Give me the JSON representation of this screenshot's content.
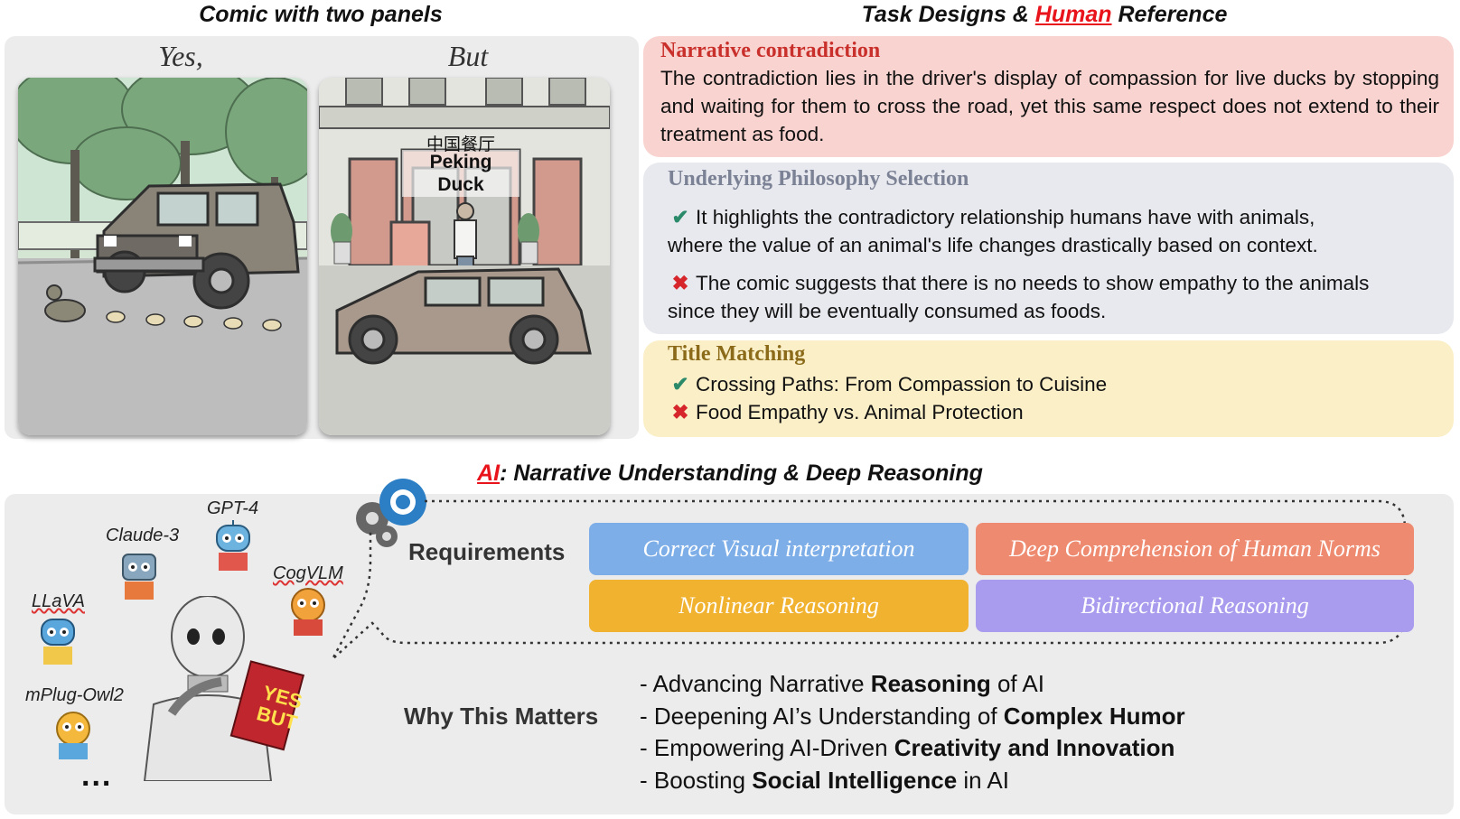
{
  "comic": {
    "heading": "Comic with two panels",
    "panel1_title": "Yes,",
    "panel2_title": "But",
    "sign_cn": "中国餐厅",
    "sign_l1": "Peking",
    "sign_l2": "Duck"
  },
  "task": {
    "heading_pre": "Task Designs & ",
    "heading_highlight": "Human",
    "heading_post": " Reference",
    "narrative": {
      "title": "Narrative contradiction",
      "text": "The contradiction lies in the driver's display of compassion for live ducks by stopping and waiting for them to cross the road, yet this same respect does not extend to their treatment as food."
    },
    "philosophy": {
      "title": "Underlying Philosophy Selection",
      "correct_l1": "It highlights the contradictory relationship humans have with animals,",
      "correct_l2": "where the value of an animal's  life changes drastically based on context.",
      "wrong_l1": "The comic suggests that there is no needs to show empathy to the animals",
      "wrong_l2": "since they will be eventually consumed as foods."
    },
    "title_matching": {
      "title": "Title Matching",
      "correct": "Crossing Paths: From Compassion to Cuisine",
      "wrong": "Food Empathy vs. Animal Protection"
    }
  },
  "ai": {
    "heading_highlight": "AI",
    "heading_post": ": Narrative Understanding & Deep Reasoning",
    "models": [
      "GPT-4",
      "Claude-3",
      "CogVLM",
      "LLaVA",
      "mPlug-Owl2"
    ],
    "more": "...",
    "requirements_label": "Requirements",
    "requirements": [
      {
        "label": "Correct Visual interpretation",
        "color": "#7daee8"
      },
      {
        "label": "Deep Comprehension of Human Norms",
        "color": "#ee8a6f"
      },
      {
        "label": "Nonlinear Reasoning",
        "color": "#f0b22f"
      },
      {
        "label": "Bidirectional Reasoning",
        "color": "#a99bed"
      }
    ],
    "why_label": "Why This Matters",
    "why": [
      {
        "pre": "- Advancing Narrative ",
        "bold": "Reasoning",
        "post": " of AI"
      },
      {
        "pre": "- Deepening AI’s Understanding of ",
        "bold": "Complex Humor",
        "post": ""
      },
      {
        "pre": "- Empowering AI-Driven ",
        "bold": "Creativity and Innovation",
        "post": ""
      },
      {
        "pre": "- Boosting ",
        "bold": "Social Intelligence",
        "post": " in AI"
      }
    ],
    "robot_book_l1": "YES",
    "robot_book_l2": "BUT"
  }
}
